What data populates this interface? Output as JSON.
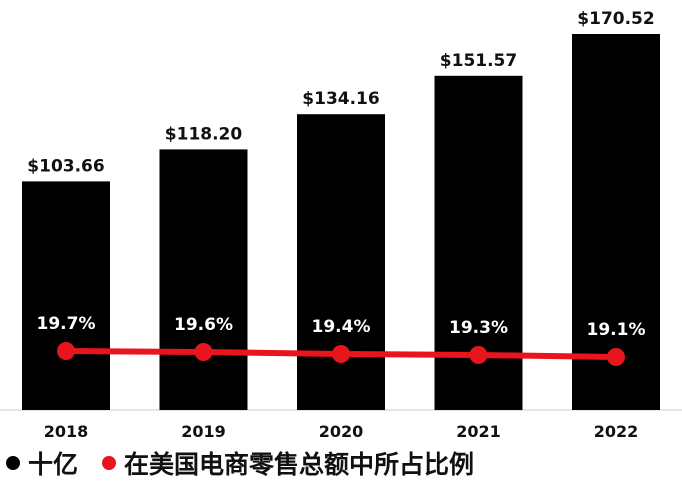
{
  "chart_data": {
    "type": "bar",
    "title": "",
    "xlabel": "",
    "ylabel": "",
    "categories": [
      "2018",
      "2019",
      "2020",
      "2021",
      "2022"
    ],
    "series": [
      {
        "name": "十亿",
        "type": "bar",
        "values": [
          103.66,
          118.2,
          134.16,
          151.57,
          170.52
        ],
        "labels": [
          "$103.66",
          "$118.20",
          "$134.16",
          "$151.57",
          "$170.52"
        ],
        "color": "#000000"
      },
      {
        "name": "在美国电商零售总额中所占比例",
        "type": "line",
        "values": [
          19.7,
          19.6,
          19.4,
          19.3,
          19.1
        ],
        "labels": [
          "19.7%",
          "19.6%",
          "19.4%",
          "19.3%",
          "19.1%"
        ],
        "color": "#e8141e"
      }
    ],
    "ylim": [
      0,
      180
    ],
    "grid": false,
    "legend_position": "bottom-left"
  }
}
